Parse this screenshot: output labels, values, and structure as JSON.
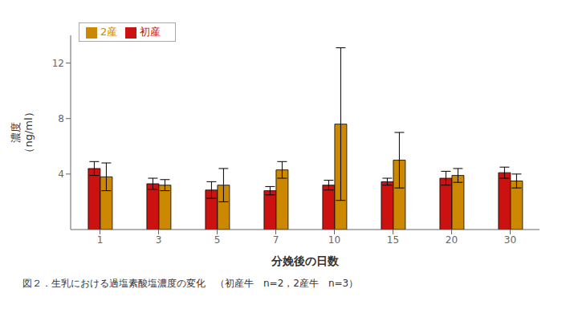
{
  "chart_data": {
    "type": "bar",
    "x_label": "分娩後の日数",
    "y_label": "濃度\n（ng/ml）",
    "annotations": [
      "図２．生乳における過塩素酸塩濃度の変化　（初産牛　n=2，2産牛　n=3）"
    ],
    "categories": [
      "1",
      "3",
      "5",
      "7",
      "10",
      "15",
      "20",
      "30"
    ],
    "series": [
      {
        "name": "初産",
        "color": "#cc1111",
        "values": [
          4.4,
          3.3,
          2.85,
          2.8,
          3.2,
          3.45,
          3.7,
          4.1
        ],
        "errors": [
          0.5,
          0.4,
          0.6,
          0.3,
          0.35,
          0.25,
          0.5,
          0.4
        ]
      },
      {
        "name": "2産",
        "color": "#cc8800",
        "values": [
          3.8,
          3.2,
          3.2,
          4.3,
          7.6,
          5.0,
          3.9,
          3.5
        ],
        "errors": [
          1.0,
          0.4,
          1.2,
          0.6,
          5.5,
          2.0,
          0.5,
          0.5
        ]
      }
    ],
    "ylim": [
      0,
      14
    ],
    "yticks": [
      4,
      8,
      12
    ],
    "grid": false,
    "legend": "upper left"
  }
}
